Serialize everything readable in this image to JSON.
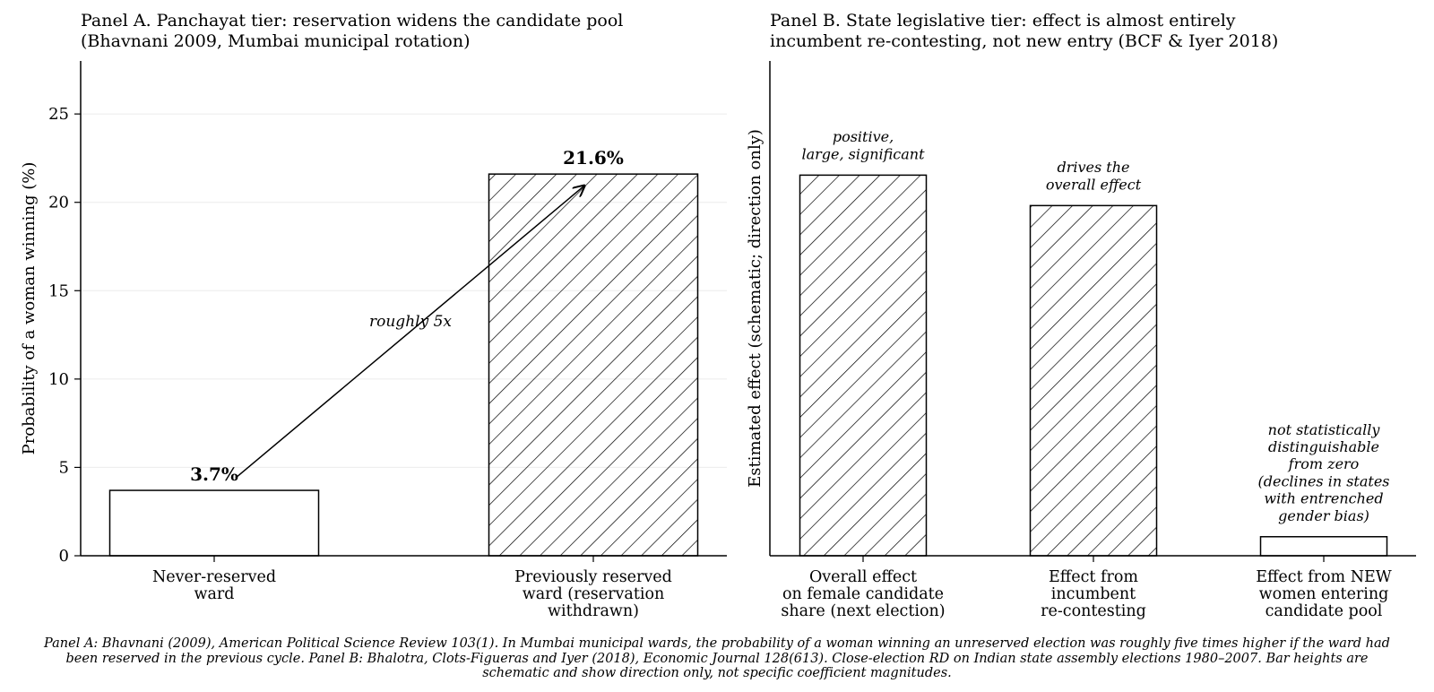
{
  "chart_data": [
    {
      "type": "bar",
      "panel": "A",
      "title_lines": [
        "Panel A. Panchayat tier: reservation widens the candidate pool",
        "(Bhavnani 2009, Mumbai municipal rotation)"
      ],
      "ylabel": "Probability of a woman winning (%)",
      "ylim": [
        0,
        28
      ],
      "yticks": [
        0,
        5,
        10,
        15,
        20,
        25
      ],
      "grid": true,
      "categories": [
        {
          "lines": [
            "Never-reserved",
            "ward"
          ],
          "value": 3.7,
          "label": "3.7%",
          "hatched": false
        },
        {
          "lines": [
            "Previously reserved",
            "ward (reservation",
            "withdrawn)"
          ],
          "value": 21.6,
          "label": "21.6%",
          "hatched": true
        }
      ],
      "arrow_annotation": "roughly 5x"
    },
    {
      "type": "bar",
      "panel": "B",
      "title_lines": [
        "Panel B. State legislative tier: effect is almost entirely",
        "incumbent re-contesting, not new entry (BCF & Iyer 2018)"
      ],
      "ylabel": "Estimated effect (schematic; direction only)",
      "ylim": [
        0,
        1.3
      ],
      "schematic": true,
      "categories": [
        {
          "lines": [
            "Overall effect",
            "on female candidate",
            "share (next election)"
          ],
          "value": 1.0,
          "hatched": true,
          "annotation": [
            "positive,",
            "large, significant"
          ]
        },
        {
          "lines": [
            "Effect from",
            "incumbent",
            "re-contesting"
          ],
          "value": 0.92,
          "hatched": true,
          "annotation": [
            "drives the",
            "overall effect"
          ]
        },
        {
          "lines": [
            "Effect from NEW",
            "women entering",
            "candidate pool"
          ],
          "value": 0.05,
          "hatched": false,
          "annotation": [
            "not statistically",
            "distinguishable",
            "from zero",
            "(declines in states",
            "with entrenched",
            "gender bias)"
          ]
        }
      ]
    }
  ],
  "caption_lines": [
    "Panel A: Bhavnani (2009), American Political Science Review 103(1). In Mumbai municipal wards, the probability of a woman winning an unreserved election was roughly five times higher if the ward had",
    "been reserved in the previous cycle. Panel B: Bhalotra, Clots-Figueras and Iyer (2018), Economic Journal 128(613). Close-election RD on Indian state assembly elections 1980–2007. Bar heights are",
    "schematic and show direction only, not specific coefficient magnitudes."
  ]
}
